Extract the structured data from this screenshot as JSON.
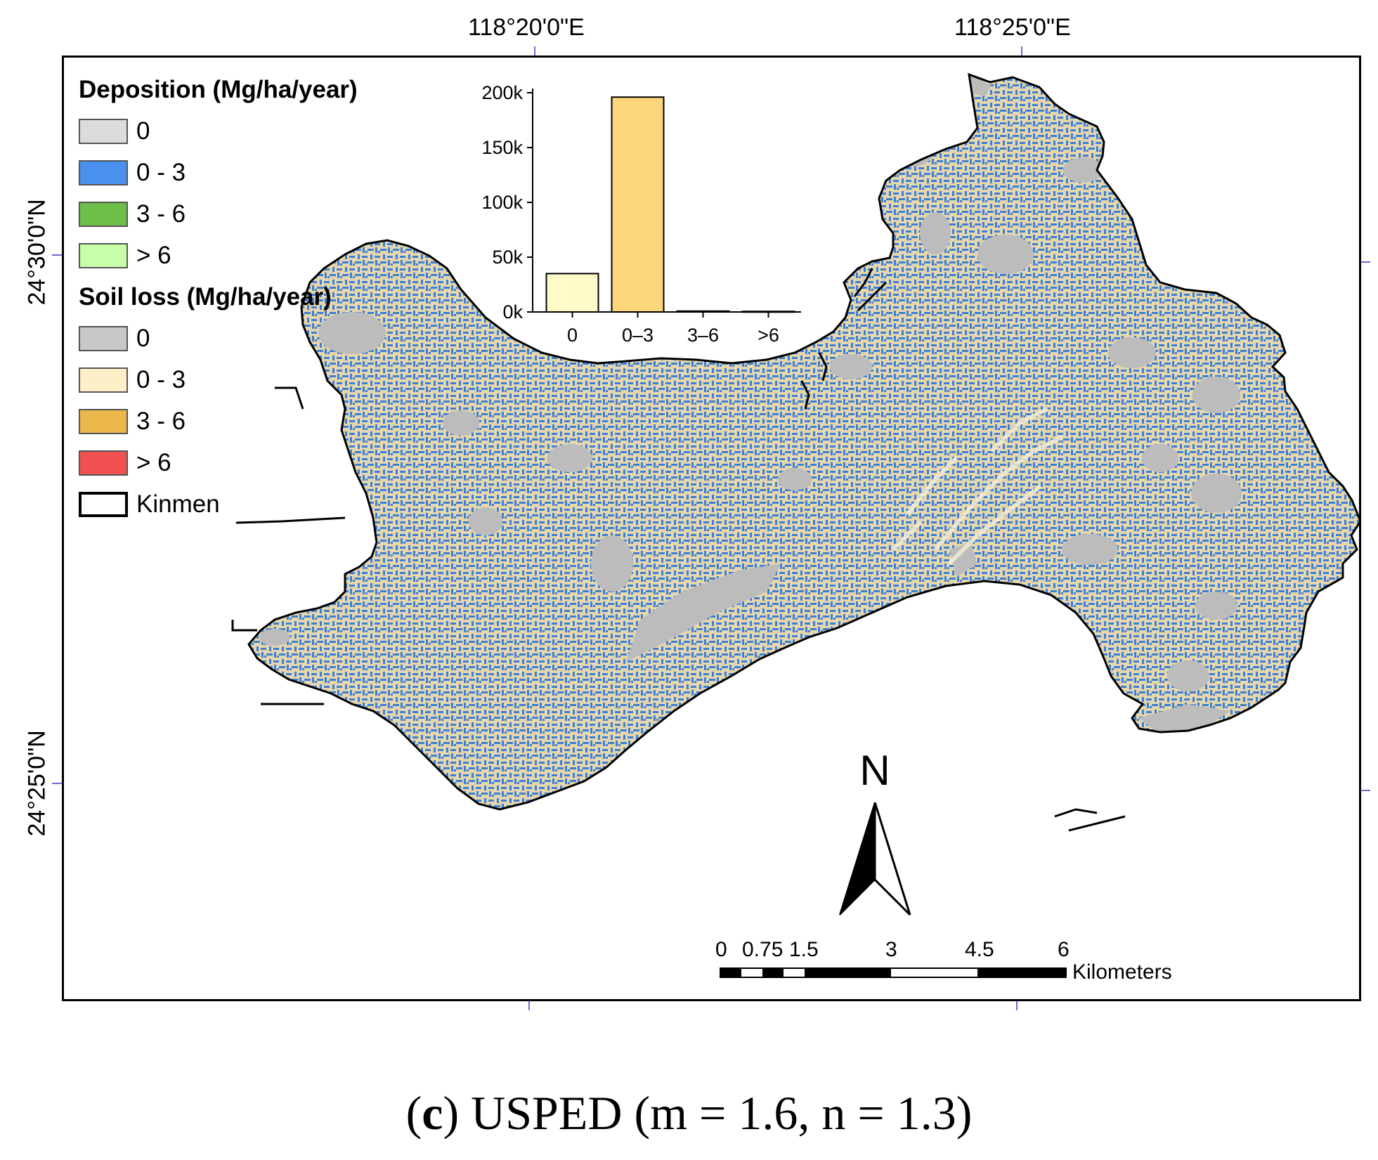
{
  "coords": {
    "top": [
      "118°20'0\"E",
      "118°25'0\"E"
    ],
    "left": [
      "24°30'0\"N",
      "24°25'0\"N"
    ]
  },
  "legend": {
    "deposition_title": "Deposition  (Mg/ha/year)",
    "deposition_items": [
      {
        "label": "0",
        "color": "#dcdcdc"
      },
      {
        "label": "0 - 3",
        "color": "#4a90ee"
      },
      {
        "label": "3 - 6",
        "color": "#6dbf4a"
      },
      {
        "label": "> 6",
        "color": "#c6ffa8"
      }
    ],
    "soil_loss_title": "Soil loss (Mg/ha/year)",
    "soil_loss_items": [
      {
        "label": "0",
        "color": "#c8c8c8"
      },
      {
        "label": "0 - 3",
        "color": "#fdf0c8"
      },
      {
        "label": "3 - 6",
        "color": "#ecb84c"
      },
      {
        "label": "> 6",
        "color": "#f05050"
      }
    ],
    "boundary_label": "Kinmen"
  },
  "chart_data": {
    "type": "bar",
    "categories": [
      "0",
      "0–3",
      "3–6",
      ">6"
    ],
    "values": [
      35000,
      196000,
      800,
      500
    ],
    "colors": [
      "#fefbc8",
      "#fdd57a",
      "#fdd57a",
      "#fdd57a"
    ],
    "yticks": [
      "0k",
      "50k",
      "100k",
      "150k",
      "200k"
    ],
    "ylim": [
      0,
      200000
    ],
    "title": "",
    "xlabel": "",
    "ylabel": ""
  },
  "north_arrow": {
    "label": "N"
  },
  "scale_bar": {
    "ticks": [
      "0",
      "0.75",
      "1.5",
      "3",
      "4.5",
      "6"
    ],
    "unit": "Kilometers"
  },
  "caption": {
    "letter": "c",
    "text": "USPED (m = 1.6, n = 1.3)"
  },
  "map_colors": {
    "land": "#e6d6ae",
    "deposition": "#3b7fd6",
    "zero": "#bcbcbc"
  }
}
